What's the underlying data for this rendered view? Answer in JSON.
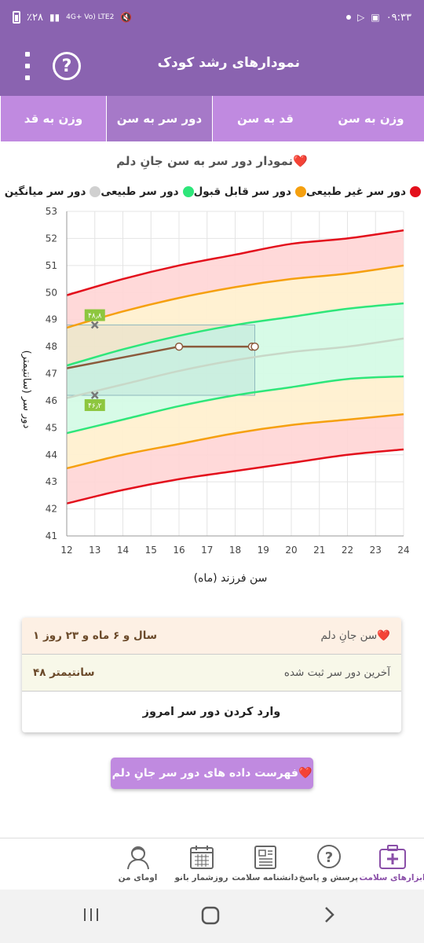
{
  "status_bar": {
    "time": "۰۹:۳۳",
    "battery": "٪۲۸",
    "network": "4G+ Vo) LTE2"
  },
  "header": {
    "title": "نمودارهای رشد کودک"
  },
  "tabs": [
    {
      "label": "وزن به سن",
      "active": false
    },
    {
      "label": "قد به سن",
      "active": false
    },
    {
      "label": "دور سر به سن",
      "active": true
    },
    {
      "label": "وزن به قد",
      "active": false
    }
  ],
  "chart": {
    "title": "نمودار دور سر به سن جانِ دلم❤️",
    "legend": [
      {
        "label": "دور سر غیر طبیعی",
        "color": "#e3101c"
      },
      {
        "label": "دور سر قابل قبول",
        "color": "#f5a00f"
      },
      {
        "label": "دور سر طبیعی",
        "color": "#2ee67a"
      },
      {
        "label": "دور سر میانگین",
        "color": "#d0d0d0"
      }
    ],
    "xlabel": "سن فرزند (ماه)",
    "ylabel": "دور سر (سانتیمتر)",
    "marker_labels": {
      "upper": "۴۸٫۸",
      "lower": "۴۶٫۲"
    }
  },
  "chart_data": {
    "type": "line",
    "x_range": [
      12,
      24
    ],
    "y_range": [
      41,
      53
    ],
    "x_ticks": [
      12,
      13,
      14,
      15,
      16,
      17,
      18,
      19,
      20,
      21,
      22,
      23,
      24
    ],
    "y_ticks": [
      41,
      42,
      43,
      44,
      45,
      46,
      47,
      48,
      49,
      50,
      51,
      52,
      53
    ],
    "x": [
      12,
      14,
      16,
      18,
      20,
      22,
      24
    ],
    "series": [
      {
        "name": "دور سر غیر طبیعی",
        "color": "#e3101c",
        "values": [
          49.9,
          50.5,
          51.0,
          51.4,
          51.8,
          52.0,
          52.3
        ]
      },
      {
        "name": "دور سر قابل قبول",
        "color": "#f5a00f",
        "values": [
          48.7,
          49.3,
          49.8,
          50.2,
          50.5,
          50.7,
          51.0
        ]
      },
      {
        "name": "دور سر طبیعی",
        "color": "#2ee67a",
        "values": [
          47.3,
          47.9,
          48.4,
          48.8,
          49.1,
          49.4,
          49.6
        ]
      },
      {
        "name": "دور سر میانگین",
        "color": "#c8d8c8",
        "values": [
          46.1,
          46.6,
          47.1,
          47.5,
          47.8,
          48.0,
          48.3
        ]
      },
      {
        "name": "دور سر طبیعی",
        "color": "#2ee67a",
        "values": [
          44.8,
          45.3,
          45.8,
          46.2,
          46.5,
          46.8,
          46.9
        ]
      },
      {
        "name": "دور سر قابل قبول",
        "color": "#f5a00f",
        "values": [
          43.5,
          44.0,
          44.4,
          44.8,
          45.1,
          45.3,
          45.5
        ]
      },
      {
        "name": "دور سر غیر طبیعی",
        "color": "#e3101c",
        "values": [
          42.2,
          42.7,
          43.1,
          43.4,
          43.7,
          44.0,
          44.2
        ]
      }
    ],
    "child": {
      "x": [
        12,
        16,
        18.6,
        18.7
      ],
      "y": [
        47.2,
        48.0,
        48.0,
        48.0
      ],
      "color": "#8b5a3c"
    },
    "reference_box": {
      "x": [
        12,
        18.7
      ],
      "y": [
        46.2,
        48.8
      ]
    },
    "markers": [
      {
        "x": 13,
        "y": 48.8
      },
      {
        "x": 13,
        "y": 46.2
      }
    ]
  },
  "info": {
    "age_label": "سن جانِ دلم❤️",
    "age_value": "۱ سال و ۶ ماه و ۲۳ روز",
    "last_label": "آخرین دور سر ثبت شده",
    "last_value": "۴۸ سانتیمتر",
    "enter_button": "وارد کردن دور سر امروز"
  },
  "list_button": "فهرست داده های دور سر جانِ دلم❤️",
  "bottom_nav": [
    {
      "label": "ابزارهای سلامت",
      "icon": "health-kit-icon",
      "active": true
    },
    {
      "label": "پرسش و پاسخ",
      "icon": "question-icon",
      "active": false
    },
    {
      "label": "دانشنامه سلامت",
      "icon": "encyclopedia-icon",
      "active": false
    },
    {
      "label": "روزشمار بانو",
      "icon": "calendar-icon",
      "active": false
    },
    {
      "label": "اومای من",
      "icon": "profile-icon",
      "active": false
    }
  ]
}
